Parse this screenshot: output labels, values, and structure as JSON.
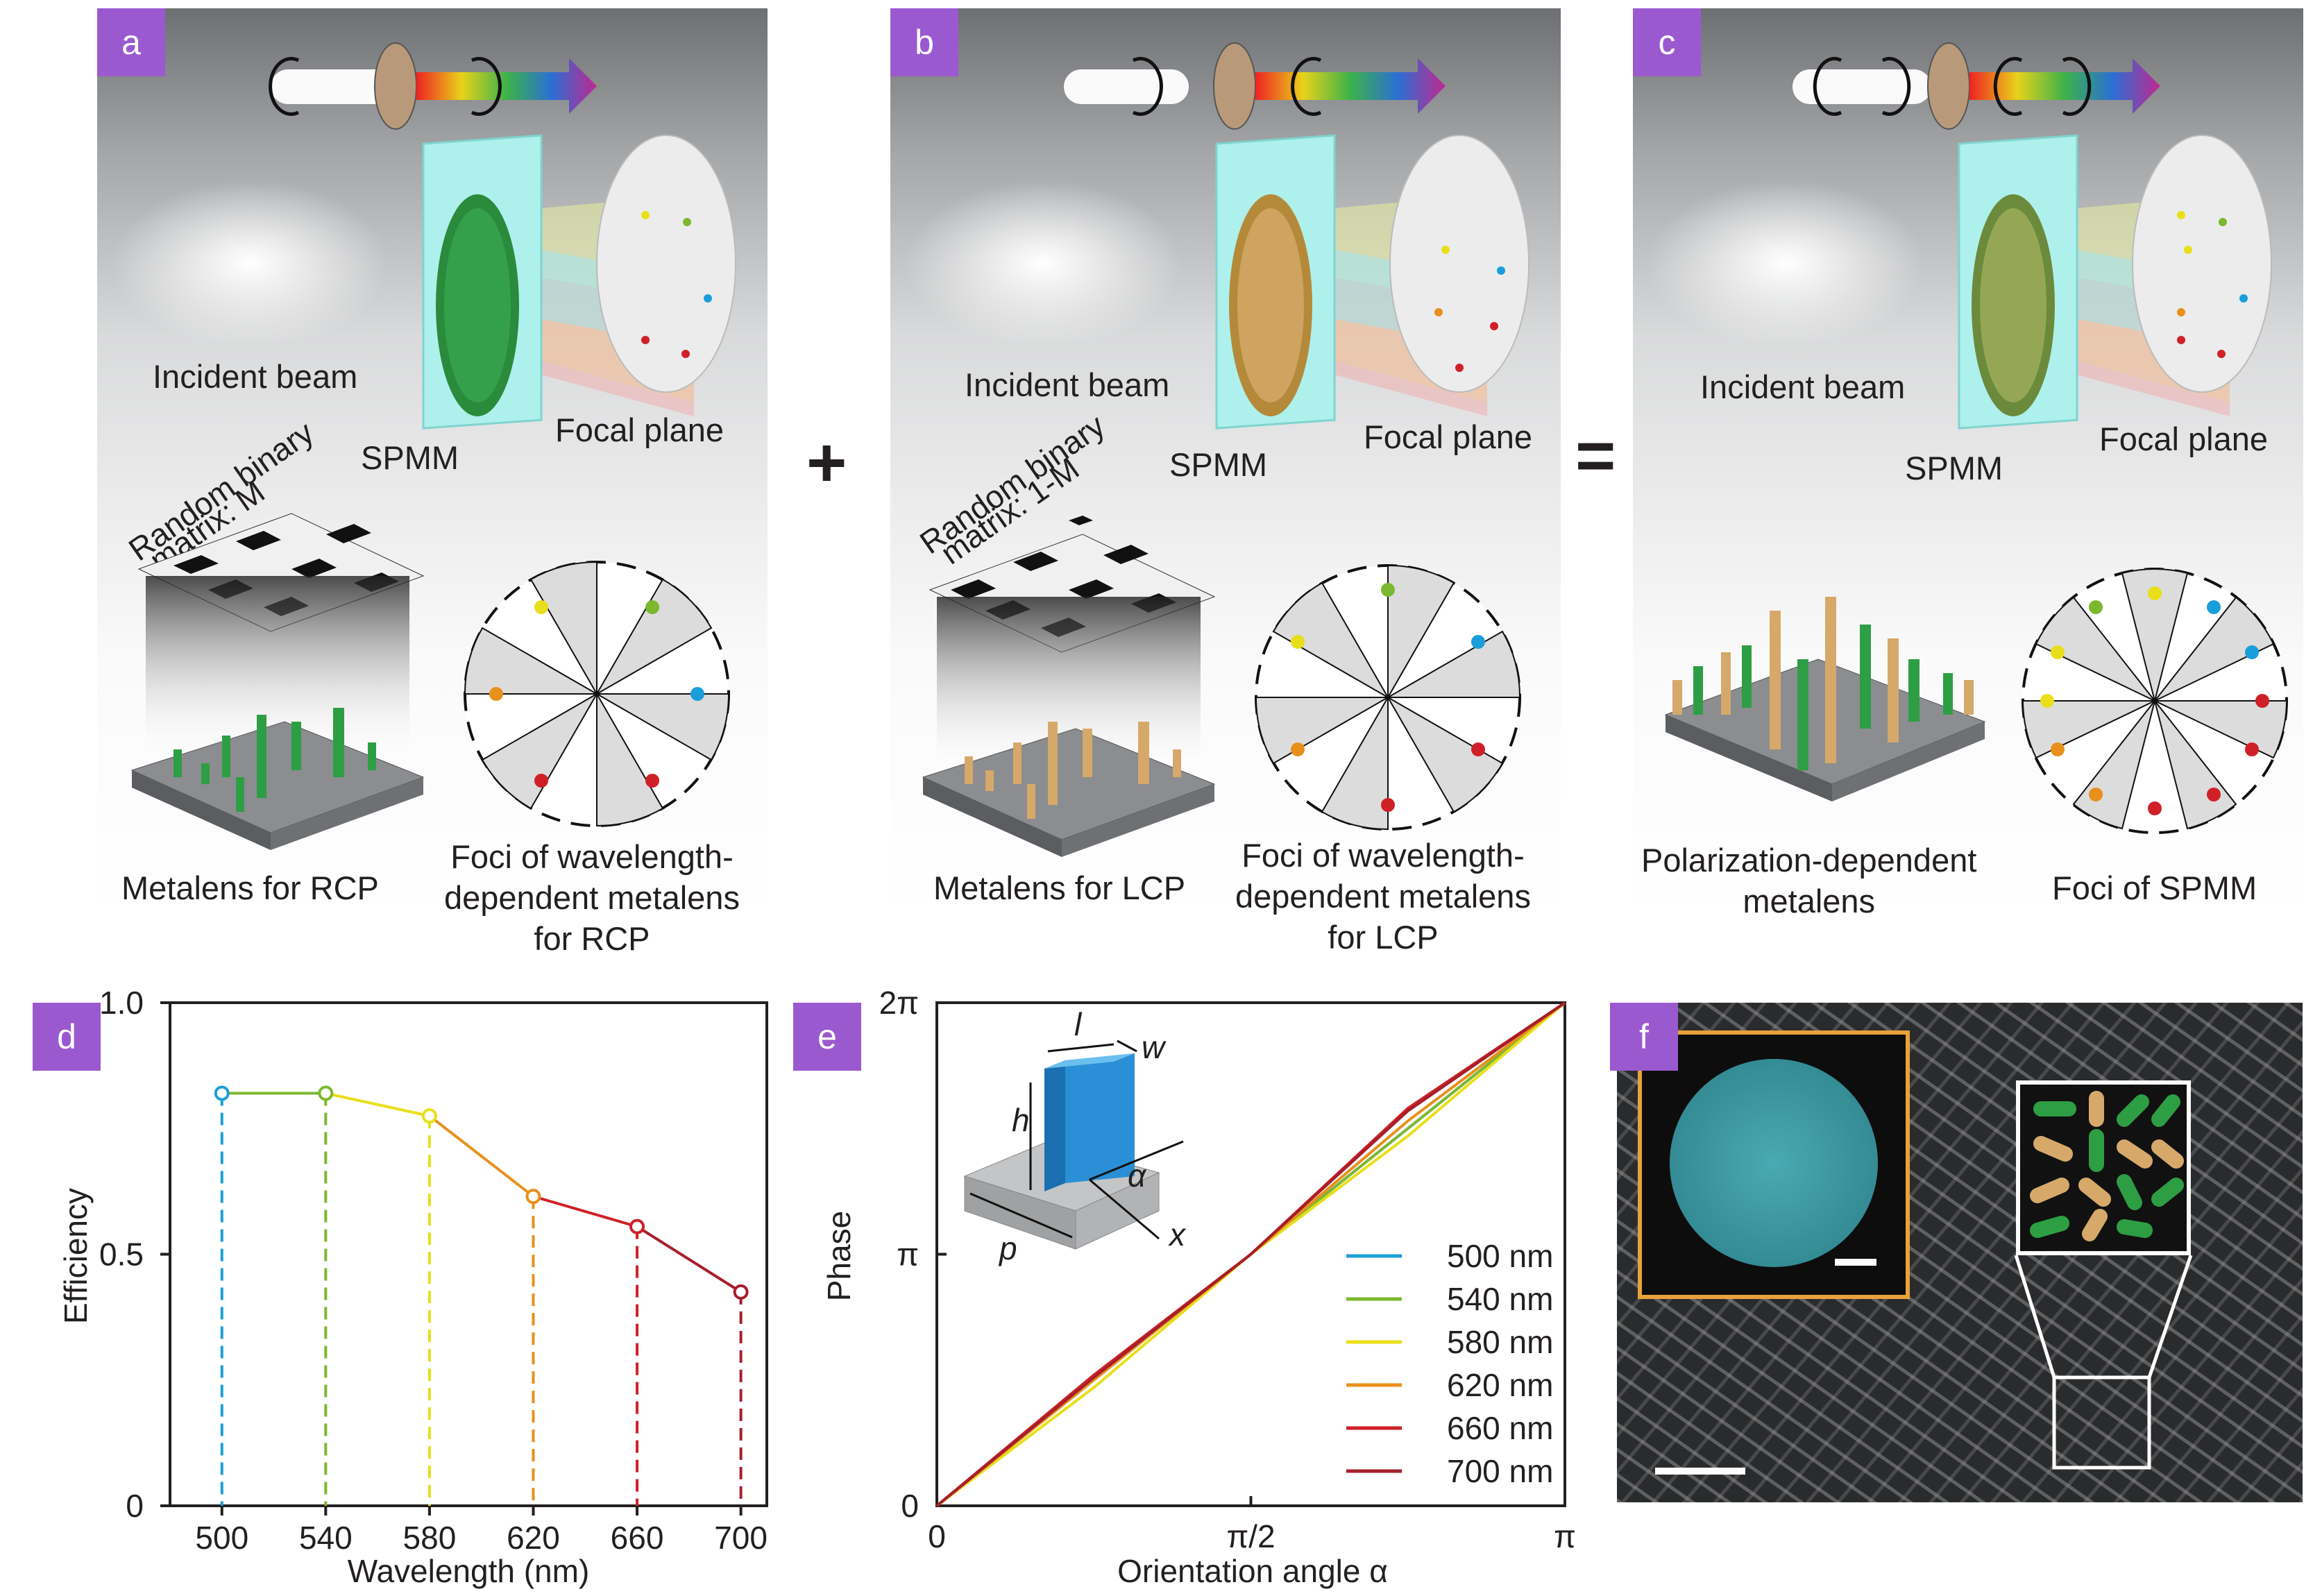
{
  "panels": [
    {
      "badge": "a",
      "incident": "Incident beam",
      "spmm": "SPMM",
      "focal": "Focal plane",
      "matrix": [
        "Random binary",
        "matrix: M"
      ],
      "caption1": "Metalens for RCP",
      "caption2": [
        "Foci of wavelength-",
        "dependent metalens",
        "for RCP"
      ]
    },
    {
      "badge": "b",
      "incident": "Incident beam",
      "spmm": "SPMM",
      "focal": "Focal plane",
      "matrix": [
        "Random binary",
        "matrix: 1-M"
      ],
      "caption1": "Metalens for LCP",
      "caption2": [
        "Foci of wavelength-",
        "dependent metalens",
        "for LCP"
      ]
    },
    {
      "badge": "c",
      "incident": "Incident beam",
      "spmm": "SPMM",
      "focal": "Focal plane",
      "caption1": [
        "Polarization-dependent",
        "metalens"
      ],
      "caption2": "Foci of SPMM"
    }
  ],
  "operators": {
    "plus": "+",
    "equals": "="
  },
  "colors": {
    "c500": "#1a9ed9",
    "c540": "#7cb82f",
    "c580": "#e8df1a",
    "c620": "#e8901c",
    "c660": "#d02027",
    "c700": "#a51f2a",
    "badge": "#9b59d0",
    "green_pillar": "#2e9e44",
    "tan_pillar": "#d6a96a"
  },
  "chart_d": {
    "badge": "d",
    "xlabel": "Wavelength (nm)",
    "ylabel": "Efficiency",
    "yticks": [
      "0",
      "0.5",
      "1.0"
    ],
    "xticks": [
      "500",
      "540",
      "580",
      "620",
      "660",
      "700"
    ]
  },
  "chart_e": {
    "badge": "e",
    "xlabel": "Orientation angle α",
    "ylabel": "Phase",
    "yticks": [
      "0",
      "π",
      "2π"
    ],
    "xticks": [
      "0",
      "π/2",
      "π"
    ],
    "inset": {
      "l": "l",
      "w": "w",
      "h": "h",
      "p": "p",
      "x": "x",
      "alpha": "α"
    }
  },
  "panel_f": {
    "badge": "f"
  },
  "chart_data": [
    {
      "type": "line",
      "x": [
        500,
        540,
        580,
        620,
        660,
        700
      ],
      "series": [
        {
          "values": [
            0.82,
            0.82,
            0.775,
            0.615,
            0.555,
            0.425
          ]
        }
      ],
      "xlabel": "Wavelength (nm)",
      "ylabel": "Efficiency",
      "ylim": [
        0,
        1.0
      ],
      "xlim": [
        480,
        710
      ]
    },
    {
      "type": "line",
      "x": [
        0,
        0.25,
        0.5,
        0.75,
        1.0
      ],
      "xunit": "π",
      "yunit": "π",
      "series": [
        {
          "name": "500 nm",
          "values": [
            0,
            0.5,
            1.0,
            1.5,
            2.0
          ]
        },
        {
          "name": "540 nm",
          "values": [
            0,
            0.5,
            1.0,
            1.5,
            2.0
          ]
        },
        {
          "name": "580 nm",
          "values": [
            0,
            0.47,
            1.0,
            1.47,
            2.0
          ]
        },
        {
          "name": "620 nm",
          "values": [
            0,
            0.5,
            1.0,
            1.53,
            2.0
          ]
        },
        {
          "name": "660 nm",
          "values": [
            0,
            0.52,
            1.0,
            1.58,
            2.0
          ]
        },
        {
          "name": "700 nm",
          "values": [
            0,
            0.51,
            1.0,
            1.57,
            2.0
          ]
        }
      ],
      "xlabel": "Orientation angle α",
      "ylabel": "Phase",
      "ylim": [
        0,
        2
      ],
      "xlim": [
        0,
        1
      ],
      "legend": "bottom-right"
    }
  ]
}
